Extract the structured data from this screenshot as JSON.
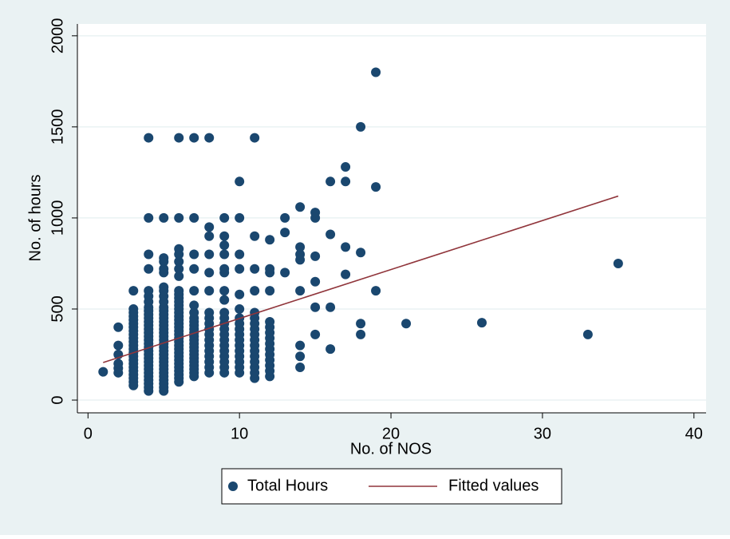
{
  "chart_data": {
    "type": "scatter",
    "x_label": "No. of NOS",
    "y_label": "No. of hours",
    "xlim": [
      -0.7,
      40.8
    ],
    "ylim": [
      -70,
      2065
    ],
    "xticks": [
      0,
      10,
      20,
      30,
      40
    ],
    "yticks": [
      0,
      500,
      1000,
      1500,
      2000
    ],
    "grid": true,
    "legend": "bottom",
    "series": [
      {
        "name": "Total Hours",
        "color": "#1a476f",
        "type": "scatter",
        "x": [
          1,
          2,
          2,
          2,
          2,
          2,
          2,
          3,
          3,
          3,
          3,
          3,
          3,
          3,
          3,
          3,
          3,
          3,
          3,
          3,
          3,
          3,
          3,
          3,
          3,
          3,
          3,
          3,
          3,
          3,
          4,
          4,
          4,
          4,
          4,
          4,
          4,
          4,
          4,
          4,
          4,
          4,
          4,
          4,
          4,
          4,
          4,
          4,
          4,
          4,
          4,
          4,
          4,
          4,
          4,
          4,
          4,
          4,
          4,
          4,
          4,
          5,
          5,
          5,
          5,
          5,
          5,
          5,
          5,
          5,
          5,
          5,
          5,
          5,
          5,
          5,
          5,
          5,
          5,
          5,
          5,
          5,
          5,
          5,
          5,
          5,
          5,
          5,
          5,
          5,
          5,
          5,
          5,
          5,
          6,
          6,
          6,
          6,
          6,
          6,
          6,
          6,
          6,
          6,
          6,
          6,
          6,
          6,
          6,
          6,
          6,
          6,
          6,
          6,
          6,
          6,
          6,
          6,
          6,
          6,
          6,
          6,
          6,
          6,
          6,
          6,
          6,
          7,
          7,
          7,
          7,
          7,
          7,
          7,
          7,
          7,
          7,
          7,
          7,
          7,
          7,
          7,
          7,
          7,
          7,
          7,
          7,
          7,
          7,
          7,
          7,
          8,
          8,
          8,
          8,
          8,
          8,
          8,
          8,
          8,
          8,
          8,
          8,
          8,
          8,
          8,
          8,
          8,
          8,
          9,
          9,
          9,
          9,
          9,
          9,
          9,
          9,
          9,
          9,
          9,
          9,
          9,
          9,
          9,
          9,
          9,
          9,
          9,
          9,
          10,
          10,
          10,
          10,
          10,
          10,
          10,
          10,
          10,
          10,
          10,
          10,
          10,
          10,
          10,
          10,
          10,
          11,
          11,
          11,
          11,
          11,
          11,
          11,
          11,
          11,
          11,
          11,
          11,
          11,
          11,
          11,
          11,
          11,
          12,
          12,
          12,
          12,
          12,
          12,
          12,
          12,
          12,
          12,
          12,
          12,
          12,
          12,
          12,
          13,
          13,
          13,
          14,
          14,
          14,
          14,
          14,
          14,
          14,
          14,
          15,
          15,
          15,
          15,
          15,
          15,
          16,
          16,
          16,
          16,
          17,
          17,
          17,
          17,
          18,
          18,
          18,
          18,
          19,
          19,
          19,
          21,
          26,
          33,
          35
        ],
        "values": [
          155,
          150,
          175,
          200,
          250,
          300,
          400,
          80,
          100,
          120,
          140,
          160,
          180,
          200,
          220,
          240,
          260,
          280,
          300,
          320,
          340,
          360,
          380,
          400,
          420,
          440,
          460,
          480,
          500,
          600,
          50,
          70,
          90,
          110,
          130,
          150,
          170,
          190,
          210,
          230,
          250,
          270,
          290,
          310,
          330,
          350,
          370,
          390,
          410,
          430,
          450,
          470,
          490,
          510,
          540,
          570,
          600,
          720,
          800,
          1000,
          1440,
          50,
          70,
          90,
          110,
          130,
          150,
          170,
          190,
          210,
          230,
          250,
          270,
          290,
          310,
          330,
          350,
          370,
          390,
          410,
          430,
          450,
          470,
          490,
          510,
          540,
          570,
          600,
          620,
          700,
          720,
          760,
          780,
          1000,
          100,
          120,
          140,
          160,
          180,
          200,
          220,
          240,
          260,
          280,
          300,
          320,
          340,
          360,
          380,
          400,
          420,
          440,
          460,
          480,
          500,
          520,
          540,
          560,
          580,
          600,
          680,
          720,
          760,
          800,
          830,
          1000,
          1440,
          130,
          150,
          170,
          190,
          210,
          230,
          250,
          270,
          290,
          310,
          330,
          350,
          370,
          390,
          410,
          430,
          450,
          480,
          520,
          600,
          720,
          800,
          1000,
          1440,
          150,
          180,
          210,
          240,
          270,
          300,
          330,
          360,
          390,
          420,
          450,
          480,
          600,
          700,
          800,
          900,
          950,
          1440,
          150,
          180,
          210,
          240,
          270,
          300,
          330,
          360,
          390,
          420,
          450,
          480,
          550,
          600,
          700,
          720,
          800,
          850,
          900,
          1000,
          150,
          180,
          210,
          240,
          270,
          300,
          330,
          360,
          390,
          420,
          450,
          500,
          580,
          720,
          800,
          1000,
          1200,
          120,
          150,
          180,
          210,
          240,
          270,
          300,
          330,
          360,
          390,
          420,
          450,
          480,
          600,
          720,
          900,
          1440,
          130,
          160,
          190,
          220,
          250,
          280,
          310,
          340,
          370,
          400,
          430,
          600,
          700,
          720,
          880,
          700,
          920,
          1000,
          180,
          240,
          300,
          600,
          770,
          800,
          840,
          1060,
          360,
          510,
          650,
          790,
          1000,
          1030,
          280,
          510,
          910,
          1200,
          690,
          840,
          1200,
          1280,
          360,
          420,
          810,
          1500,
          600,
          1170,
          1800,
          420,
          425,
          360,
          750
        ]
      },
      {
        "name": "Fitted values",
        "color": "#90353b",
        "type": "line",
        "x": [
          1,
          35
        ],
        "values": [
          206,
          1120
        ]
      }
    ]
  }
}
